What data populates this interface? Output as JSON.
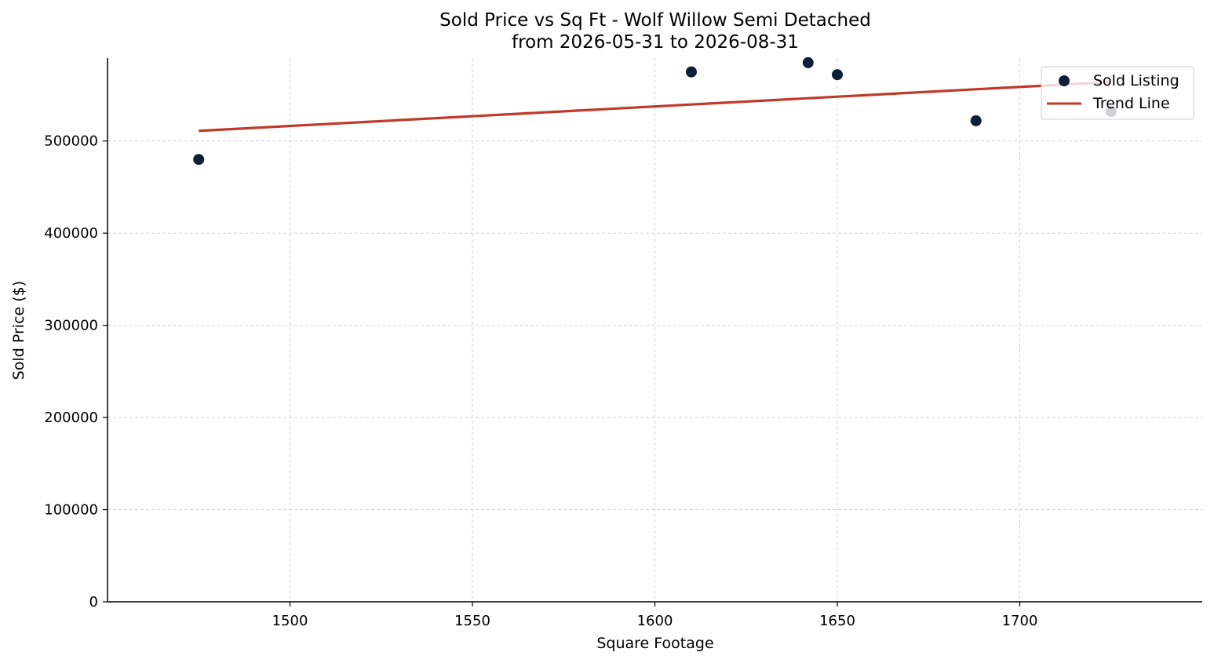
{
  "chart_data": {
    "type": "scatter",
    "title": "Sold Price vs Sq Ft - Wolf Willow Semi Detached",
    "subtitle": "from 2026-05-31 to 2026-08-31",
    "xlabel": "Square Footage",
    "ylabel": "Sold Price ($)",
    "xlim": [
      1450,
      1750
    ],
    "ylim": [
      0,
      590000
    ],
    "x_ticks": [
      1500,
      1550,
      1600,
      1650,
      1700
    ],
    "y_ticks": [
      0,
      100000,
      200000,
      300000,
      400000,
      500000
    ],
    "grid": true,
    "legend_position": "top-right",
    "series": [
      {
        "name": "Sold Listing",
        "kind": "scatter",
        "color": "#0b1f3a",
        "points": [
          {
            "x": 1475,
            "y": 480000
          },
          {
            "x": 1610,
            "y": 575000
          },
          {
            "x": 1642,
            "y": 585000
          },
          {
            "x": 1650,
            "y": 572000
          },
          {
            "x": 1688,
            "y": 522000
          },
          {
            "x": 1725,
            "y": 532000
          }
        ]
      },
      {
        "name": "Trend Line",
        "kind": "line",
        "color": "#c0392b",
        "points": [
          {
            "x": 1475,
            "y": 511000
          },
          {
            "x": 1725,
            "y": 564000
          }
        ]
      }
    ]
  }
}
